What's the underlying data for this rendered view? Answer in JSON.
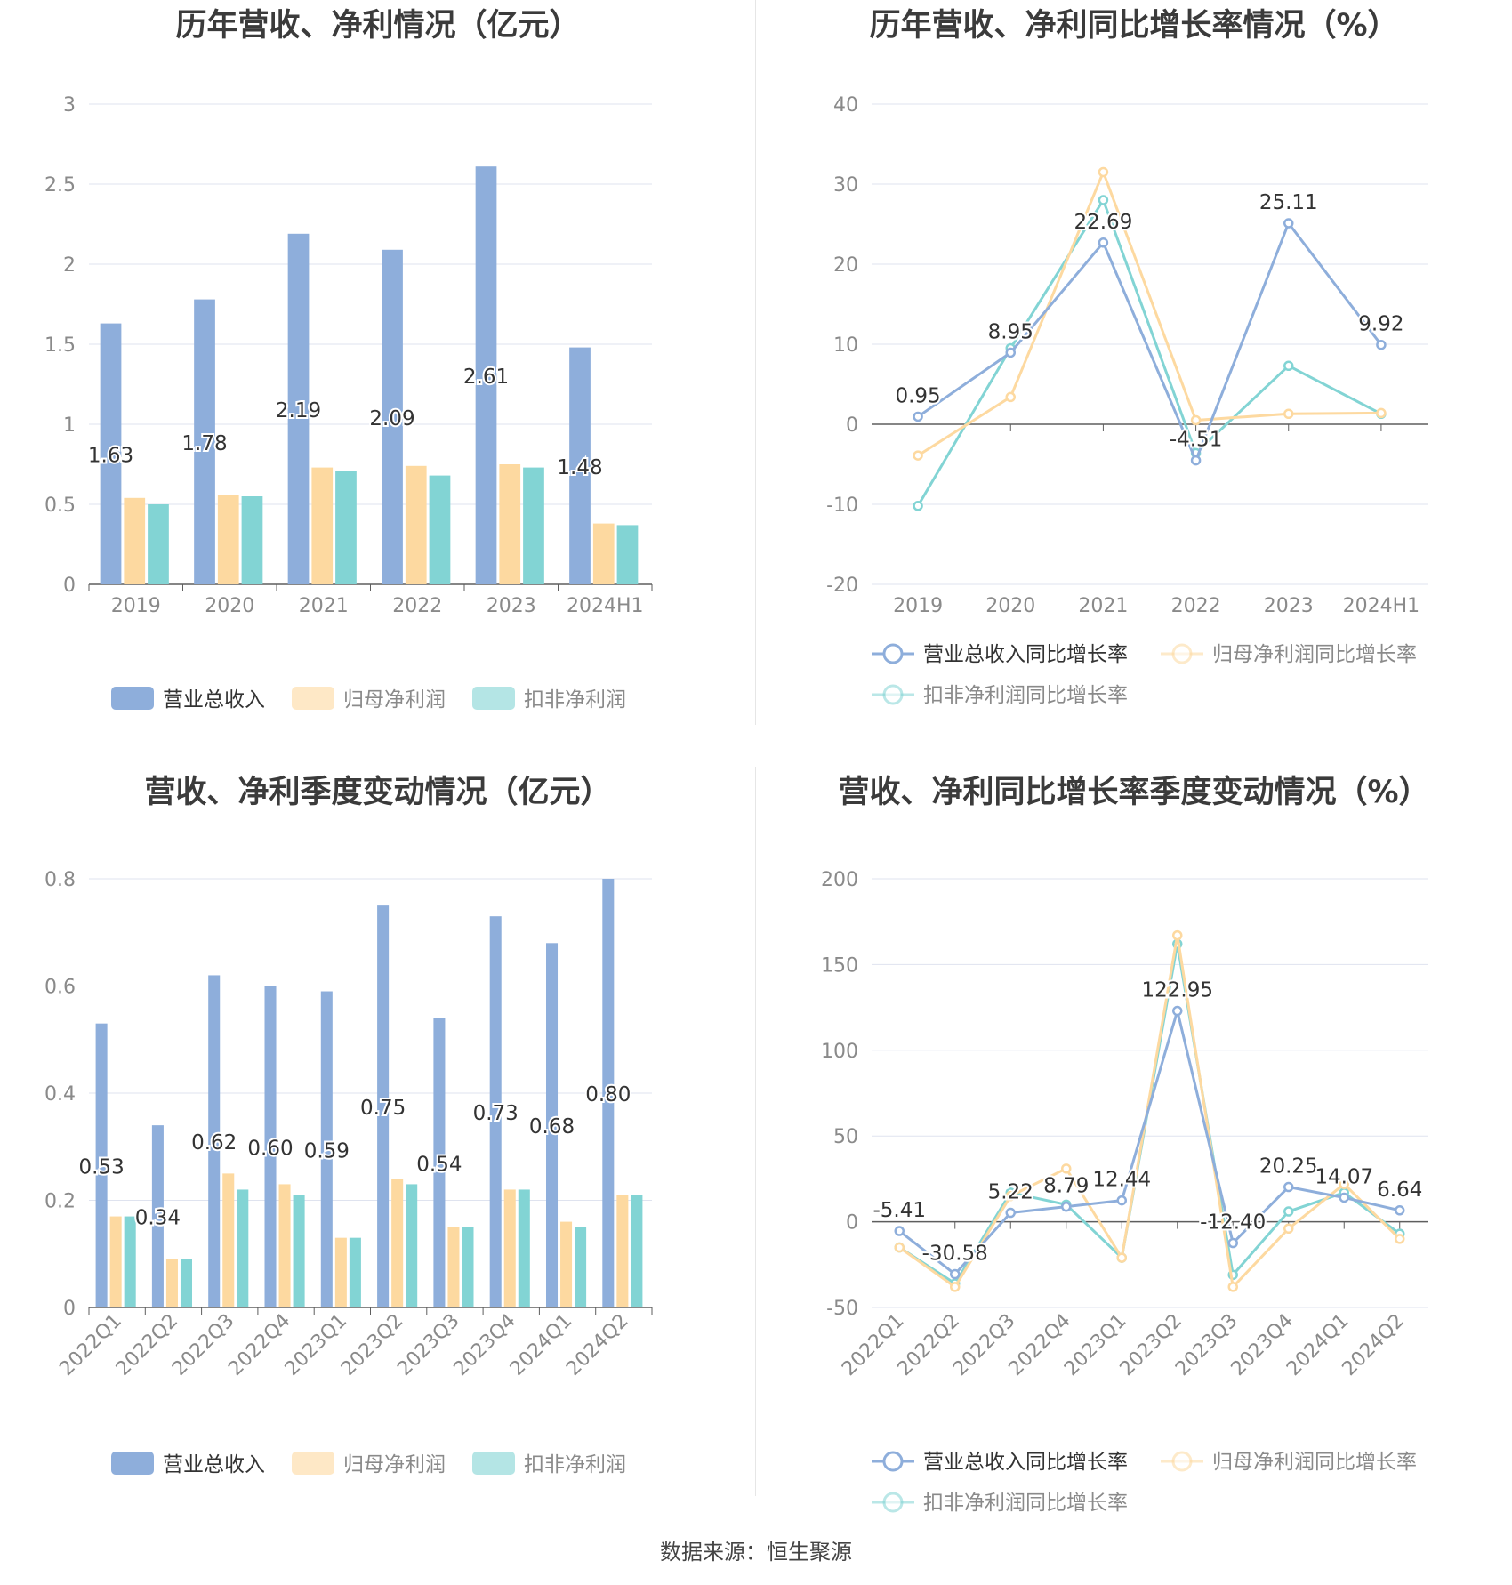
{
  "source": "数据来源：恒生聚源",
  "colors": {
    "revenue": "#8eaedb",
    "net_profit": "#fdd9a0",
    "deducted": "#82d4d4",
    "grid": "#dfe3ef",
    "axis": "#5e5e5e",
    "tick_text": "#8a8a8a"
  },
  "chart_data": [
    {
      "type": "bar",
      "title": "历年营收、净利情况（亿元）",
      "categories": [
        "2019",
        "2020",
        "2021",
        "2022",
        "2023",
        "2024H1"
      ],
      "ylim": [
        0,
        3
      ],
      "yticks": [
        "0",
        "0.5",
        "1",
        "1.5",
        "2",
        "2.5",
        "3"
      ],
      "grid": true,
      "legend_position": "bottom",
      "series": [
        {
          "name": "营业总收入",
          "values": [
            1.63,
            1.78,
            2.19,
            2.09,
            2.61,
            1.48
          ],
          "labels": [
            "1.63",
            "1.78",
            "2.19",
            "2.09",
            "2.61",
            "1.48"
          ]
        },
        {
          "name": "归母净利润",
          "values": [
            0.54,
            0.56,
            0.73,
            0.74,
            0.75,
            0.38
          ]
        },
        {
          "name": "扣非净利润",
          "values": [
            0.5,
            0.55,
            0.71,
            0.68,
            0.73,
            0.37
          ]
        }
      ]
    },
    {
      "type": "line",
      "title": "历年营收、净利同比增长率情况（%）",
      "categories": [
        "2019",
        "2020",
        "2021",
        "2022",
        "2023",
        "2024H1"
      ],
      "ylim": [
        -20,
        40
      ],
      "yticks": [
        "-20",
        "-10",
        "0",
        "10",
        "20",
        "30",
        "40"
      ],
      "grid": true,
      "legend_position": "bottom",
      "series": [
        {
          "name": "营业总收入同比增长率",
          "values": [
            0.95,
            8.95,
            22.69,
            -4.51,
            25.11,
            9.92
          ],
          "labels": [
            "0.95",
            "8.95",
            "22.69",
            "-4.51",
            "25.11",
            "9.92"
          ]
        },
        {
          "name": "归母净利润同比增长率",
          "values": [
            -3.9,
            3.4,
            31.5,
            0.5,
            1.3,
            1.4
          ]
        },
        {
          "name": "扣非净利润同比增长率",
          "values": [
            -10.2,
            9.5,
            28.0,
            -3.6,
            7.3,
            1.3
          ]
        }
      ]
    },
    {
      "type": "bar",
      "title": "营收、净利季度变动情况（亿元）",
      "categories": [
        "2022Q1",
        "2022Q2",
        "2022Q3",
        "2022Q4",
        "2023Q1",
        "2023Q2",
        "2023Q3",
        "2023Q4",
        "2024Q1",
        "2024Q2"
      ],
      "ylim": [
        0,
        0.8
      ],
      "yticks": [
        "0",
        "0.2",
        "0.4",
        "0.6",
        "0.8"
      ],
      "grid": true,
      "legend_position": "bottom",
      "series": [
        {
          "name": "营业总收入",
          "values": [
            0.53,
            0.34,
            0.62,
            0.6,
            0.59,
            0.75,
            0.54,
            0.73,
            0.68,
            0.8
          ],
          "labels": [
            "0.53",
            "0.34",
            "0.62",
            "0.60",
            "0.59",
            "0.75",
            "0.54",
            "0.73",
            "0.68",
            "0.80"
          ]
        },
        {
          "name": "归母净利润",
          "values": [
            0.17,
            0.09,
            0.25,
            0.23,
            0.13,
            0.24,
            0.15,
            0.22,
            0.16,
            0.21
          ]
        },
        {
          "name": "扣非净利润",
          "values": [
            0.17,
            0.09,
            0.22,
            0.21,
            0.13,
            0.23,
            0.15,
            0.22,
            0.15,
            0.21
          ]
        }
      ]
    },
    {
      "type": "line",
      "title": "营收、净利同比增长率季度变动情况（%）",
      "categories": [
        "2022Q1",
        "2022Q2",
        "2022Q3",
        "2022Q4",
        "2023Q1",
        "2023Q2",
        "2023Q3",
        "2023Q4",
        "2024Q1",
        "2024Q2"
      ],
      "ylim": [
        -50,
        200
      ],
      "yticks": [
        "-50",
        "0",
        "50",
        "100",
        "150",
        "200"
      ],
      "grid": true,
      "legend_position": "bottom",
      "series": [
        {
          "name": "营业总收入同比增长率",
          "values": [
            -5.41,
            -30.58,
            5.22,
            8.79,
            12.44,
            122.95,
            -12.4,
            20.25,
            14.07,
            6.64
          ],
          "labels": [
            "-5.41",
            "-30.58",
            "5.22",
            "8.79",
            "12.44",
            "122.95",
            "-12.40",
            "20.25",
            "14.07",
            "6.64"
          ]
        },
        {
          "name": "归母净利润同比增长率",
          "values": [
            -15,
            -38,
            15,
            31,
            -21,
            167,
            -38,
            -4,
            22,
            -10
          ]
        },
        {
          "name": "扣非净利润同比增长率",
          "values": [
            -15,
            -36,
            17,
            10,
            -21,
            162,
            -31,
            6,
            17,
            -7
          ]
        }
      ]
    }
  ]
}
